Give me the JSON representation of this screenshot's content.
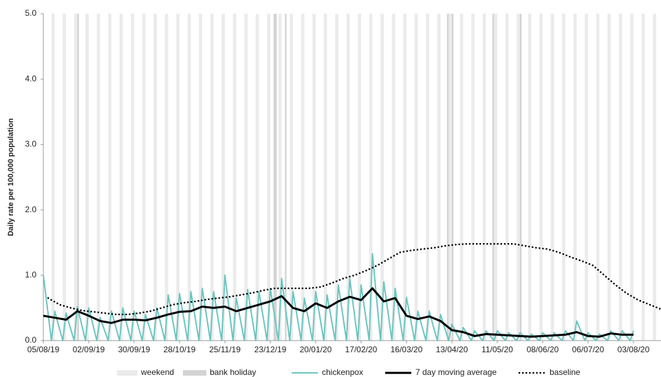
{
  "chart_data": {
    "type": "line",
    "y_label": "Daily rate per 100,000 population",
    "xlim": [
      "05/08/19",
      "20/08/20"
    ],
    "xticks": [
      "05/08/19",
      "02/09/19",
      "30/09/19",
      "28/10/19",
      "25/11/19",
      "23/12/19",
      "20/01/20",
      "17/02/20",
      "16/03/20",
      "13/04/20",
      "11/05/20",
      "08/06/20",
      "06/07/20",
      "03/08/20"
    ],
    "ylim": [
      0,
      5
    ],
    "yticks": [
      {
        "value": 0,
        "label": "0.0"
      },
      {
        "value": 1,
        "label": "1.0"
      },
      {
        "value": 2,
        "label": "2.0"
      },
      {
        "value": 3,
        "label": "3.0"
      },
      {
        "value": 4,
        "label": "4.0"
      },
      {
        "value": 5,
        "label": "5.0"
      }
    ],
    "bands": [
      {
        "name": "weekend",
        "color": "#ebebeb"
      },
      {
        "name": "bank holiday",
        "color": "#d3d3d3",
        "x": [
          "26/08/19",
          "25/12/19",
          "26/12/19",
          "01/01/20",
          "10/04/20",
          "13/04/20",
          "08/05/20",
          "25/05/20"
        ]
      }
    ],
    "series": [
      {
        "name": "chickenpox",
        "color": "#6cc5c0",
        "width": 2,
        "x": [
          "05/08/19",
          "10/08/19",
          "12/08/19",
          "17/08/19",
          "19/08/19",
          "24/08/19",
          "26/08/19",
          "31/08/19",
          "02/09/19",
          "07/09/19",
          "09/09/19",
          "14/09/19",
          "16/09/19",
          "21/09/19",
          "23/09/19",
          "28/09/19",
          "30/09/19",
          "05/10/19",
          "07/10/19",
          "12/10/19",
          "14/10/19",
          "19/10/19",
          "21/10/19",
          "26/10/19",
          "28/10/19",
          "02/11/19",
          "04/11/19",
          "09/11/19",
          "11/11/19",
          "16/11/19",
          "18/11/19",
          "23/11/19",
          "25/11/19",
          "30/11/19",
          "02/12/19",
          "07/12/19",
          "09/12/19",
          "14/12/19",
          "16/12/19",
          "21/12/19",
          "23/12/19",
          "28/12/19",
          "30/12/19",
          "04/01/20",
          "06/01/20",
          "11/01/20",
          "13/01/20",
          "18/01/20",
          "20/01/20",
          "25/01/20",
          "27/01/20",
          "01/02/20",
          "03/02/20",
          "08/02/20",
          "10/02/20",
          "15/02/20",
          "17/02/20",
          "22/02/20",
          "24/02/20",
          "29/02/20",
          "02/03/20",
          "07/03/20",
          "09/03/20",
          "14/03/20",
          "16/03/20",
          "21/03/20",
          "23/03/20",
          "28/03/20",
          "30/03/20",
          "04/04/20",
          "06/04/20",
          "11/04/20",
          "13/04/20",
          "18/04/20",
          "20/04/20",
          "25/04/20",
          "27/04/20",
          "02/05/20",
          "04/05/20",
          "09/05/20",
          "11/05/20",
          "16/05/20",
          "18/05/20",
          "23/05/20",
          "25/05/20",
          "30/05/20",
          "01/06/20",
          "06/06/20",
          "08/06/20",
          "13/06/20",
          "15/06/20",
          "20/06/20",
          "22/06/20",
          "27/06/20",
          "29/06/20",
          "04/07/20",
          "06/07/20",
          "11/07/20",
          "13/07/20",
          "18/07/20",
          "20/07/20",
          "25/07/20",
          "27/07/20",
          "01/08/20",
          "03/08/20"
        ],
        "values": [
          1.0,
          0,
          0.45,
          0,
          0.42,
          0,
          0.52,
          0,
          0.5,
          0,
          0.35,
          0,
          0.45,
          0,
          0.5,
          0,
          0.45,
          0,
          0.4,
          0,
          0.5,
          0,
          0.7,
          0,
          0.72,
          0,
          0.75,
          0,
          0.8,
          0,
          0.75,
          0,
          1.0,
          0,
          0.65,
          0,
          0.78,
          0,
          0.75,
          0,
          0.8,
          0,
          0.95,
          0,
          0.75,
          0,
          0.65,
          0,
          0.75,
          0,
          0.7,
          0,
          0.85,
          0,
          0.95,
          0,
          0.85,
          0,
          1.33,
          0,
          0.9,
          0,
          0.8,
          0,
          0.66,
          0,
          0.45,
          0,
          0.45,
          0,
          0.4,
          0,
          0.25,
          0,
          0.2,
          0,
          0.15,
          0,
          0.15,
          0,
          0.15,
          0,
          0.12,
          0,
          0.12,
          0,
          0.1,
          0,
          0.12,
          0,
          0.12,
          0,
          0.15,
          0,
          0.3,
          0,
          0.12,
          0,
          0.1,
          0,
          0.15,
          0,
          0.15,
          0,
          0.15
        ]
      },
      {
        "name": "7 day moving average",
        "color": "#000000",
        "width": 3,
        "x": [
          "05/08/19",
          "12/08/19",
          "19/08/19",
          "26/08/19",
          "02/09/19",
          "09/09/19",
          "16/09/19",
          "23/09/19",
          "30/09/19",
          "07/10/19",
          "14/10/19",
          "21/10/19",
          "28/10/19",
          "04/11/19",
          "11/11/19",
          "18/11/19",
          "25/11/19",
          "02/12/19",
          "09/12/19",
          "16/12/19",
          "23/12/19",
          "30/12/19",
          "06/01/20",
          "13/01/20",
          "20/01/20",
          "27/01/20",
          "03/02/20",
          "10/02/20",
          "17/02/20",
          "24/02/20",
          "02/03/20",
          "09/03/20",
          "16/03/20",
          "23/03/20",
          "30/03/20",
          "06/04/20",
          "13/04/20",
          "20/04/20",
          "27/04/20",
          "04/05/20",
          "11/05/20",
          "18/05/20",
          "25/05/20",
          "01/06/20",
          "08/06/20",
          "15/06/20",
          "22/06/20",
          "29/06/20",
          "06/07/20",
          "13/07/20",
          "20/07/20",
          "27/07/20",
          "03/08/20"
        ],
        "values": [
          0.38,
          0.35,
          0.32,
          0.45,
          0.38,
          0.3,
          0.27,
          0.32,
          0.32,
          0.31,
          0.35,
          0.4,
          0.44,
          0.45,
          0.52,
          0.5,
          0.52,
          0.45,
          0.5,
          0.55,
          0.6,
          0.68,
          0.5,
          0.45,
          0.57,
          0.5,
          0.6,
          0.67,
          0.62,
          0.8,
          0.6,
          0.65,
          0.38,
          0.33,
          0.37,
          0.3,
          0.16,
          0.13,
          0.07,
          0.1,
          0.09,
          0.08,
          0.07,
          0.06,
          0.07,
          0.08,
          0.09,
          0.13,
          0.07,
          0.06,
          0.11,
          0.09,
          0.09
        ]
      },
      {
        "name": "baseline",
        "color": "#000000",
        "width": 2.5,
        "dash": "dotted",
        "x": [
          "08/08/19",
          "15/08/19",
          "22/08/19",
          "29/08/19",
          "05/09/19",
          "12/09/19",
          "19/09/19",
          "26/09/19",
          "03/10/19",
          "10/10/19",
          "17/10/19",
          "24/10/19",
          "31/10/19",
          "07/11/19",
          "14/11/19",
          "21/11/19",
          "28/11/19",
          "05/12/19",
          "12/12/19",
          "19/12/19",
          "26/12/19",
          "02/01/20",
          "09/01/20",
          "16/01/20",
          "23/01/20",
          "30/01/20",
          "06/02/20",
          "13/02/20",
          "20/02/20",
          "27/02/20",
          "05/03/20",
          "12/03/20",
          "19/03/20",
          "26/03/20",
          "02/04/20",
          "09/04/20",
          "16/04/20",
          "23/04/20",
          "30/04/20",
          "07/05/20",
          "14/05/20",
          "21/05/20",
          "28/05/20",
          "04/06/20",
          "11/06/20",
          "18/06/20",
          "25/06/20",
          "02/07/20",
          "09/07/20",
          "16/07/20",
          "23/07/20",
          "30/07/20",
          "06/08/20",
          "13/08/20",
          "20/08/20"
        ],
        "values": [
          0.65,
          0.55,
          0.5,
          0.46,
          0.44,
          0.42,
          0.4,
          0.4,
          0.42,
          0.45,
          0.5,
          0.55,
          0.58,
          0.6,
          0.63,
          0.65,
          0.67,
          0.7,
          0.73,
          0.77,
          0.8,
          0.8,
          0.8,
          0.8,
          0.82,
          0.88,
          0.95,
          1.0,
          1.07,
          1.15,
          1.25,
          1.35,
          1.38,
          1.4,
          1.42,
          1.45,
          1.47,
          1.48,
          1.48,
          1.48,
          1.48,
          1.48,
          1.45,
          1.42,
          1.4,
          1.35,
          1.28,
          1.22,
          1.15,
          1.0,
          0.85,
          0.72,
          0.62,
          0.55,
          0.48
        ]
      }
    ]
  }
}
